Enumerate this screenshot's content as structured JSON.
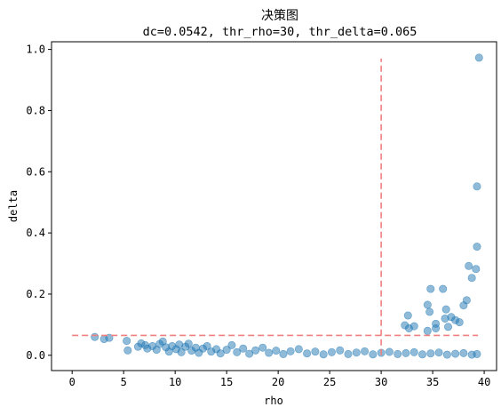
{
  "chart_data": {
    "type": "scatter",
    "title": "决策图",
    "subtitle": "dc=0.0542, thr_rho=30, thr_delta=0.065",
    "xlabel": "rho",
    "ylabel": "delta",
    "xlim": [
      -2,
      41.2
    ],
    "ylim": [
      -0.05,
      1.025
    ],
    "xticks": [
      0,
      5,
      10,
      15,
      20,
      25,
      30,
      35,
      40
    ],
    "yticks": [
      0.0,
      0.2,
      0.4,
      0.6,
      0.8,
      1.0
    ],
    "xtick_labels": [
      "0",
      "5",
      "10",
      "15",
      "20",
      "25",
      "30",
      "35",
      "40"
    ],
    "ytick_labels": [
      "0.0",
      "0.2",
      "0.4",
      "0.6",
      "0.8",
      "1.0"
    ],
    "grid": false,
    "point_color": "#1f77b4",
    "point_alpha": 0.5,
    "threshold_color": "#f08080",
    "thresholds": {
      "rho": {
        "x": 30,
        "y_range": [
          0,
          0.97
        ]
      },
      "delta": {
        "y": 0.065,
        "x_range": [
          0,
          39.4
        ]
      }
    },
    "points": [
      {
        "x": 2.2,
        "y": 0.06
      },
      {
        "x": 3.1,
        "y": 0.053
      },
      {
        "x": 3.6,
        "y": 0.057
      },
      {
        "x": 5.3,
        "y": 0.047
      },
      {
        "x": 5.4,
        "y": 0.016
      },
      {
        "x": 6.4,
        "y": 0.028
      },
      {
        "x": 6.7,
        "y": 0.039
      },
      {
        "x": 7.1,
        "y": 0.033
      },
      {
        "x": 7.3,
        "y": 0.022
      },
      {
        "x": 7.8,
        "y": 0.03
      },
      {
        "x": 8.2,
        "y": 0.018
      },
      {
        "x": 8.5,
        "y": 0.037
      },
      {
        "x": 8.8,
        "y": 0.045
      },
      {
        "x": 9.1,
        "y": 0.026
      },
      {
        "x": 9.4,
        "y": 0.012
      },
      {
        "x": 9.7,
        "y": 0.03
      },
      {
        "x": 10.1,
        "y": 0.02
      },
      {
        "x": 10.4,
        "y": 0.035
      },
      {
        "x": 10.6,
        "y": 0.01
      },
      {
        "x": 11.0,
        "y": 0.028
      },
      {
        "x": 11.3,
        "y": 0.038
      },
      {
        "x": 11.6,
        "y": 0.015
      },
      {
        "x": 12.0,
        "y": 0.025
      },
      {
        "x": 12.3,
        "y": 0.008
      },
      {
        "x": 12.7,
        "y": 0.022
      },
      {
        "x": 13.1,
        "y": 0.03
      },
      {
        "x": 13.5,
        "y": 0.012
      },
      {
        "x": 14.0,
        "y": 0.02
      },
      {
        "x": 14.4,
        "y": 0.006
      },
      {
        "x": 15.0,
        "y": 0.018
      },
      {
        "x": 15.5,
        "y": 0.033
      },
      {
        "x": 16.0,
        "y": 0.01
      },
      {
        "x": 16.6,
        "y": 0.022
      },
      {
        "x": 17.2,
        "y": 0.005
      },
      {
        "x": 17.8,
        "y": 0.016
      },
      {
        "x": 18.5,
        "y": 0.025
      },
      {
        "x": 19.1,
        "y": 0.008
      },
      {
        "x": 19.8,
        "y": 0.015
      },
      {
        "x": 20.5,
        "y": 0.004
      },
      {
        "x": 21.2,
        "y": 0.013
      },
      {
        "x": 22.0,
        "y": 0.02
      },
      {
        "x": 22.8,
        "y": 0.006
      },
      {
        "x": 23.6,
        "y": 0.012
      },
      {
        "x": 24.4,
        "y": 0.003
      },
      {
        "x": 25.2,
        "y": 0.01
      },
      {
        "x": 26.0,
        "y": 0.016
      },
      {
        "x": 26.8,
        "y": 0.004
      },
      {
        "x": 27.6,
        "y": 0.009
      },
      {
        "x": 28.4,
        "y": 0.013
      },
      {
        "x": 29.2,
        "y": 0.003
      },
      {
        "x": 30.0,
        "y": 0.008
      },
      {
        "x": 30.8,
        "y": 0.011
      },
      {
        "x": 31.6,
        "y": 0.004
      },
      {
        "x": 32.4,
        "y": 0.007
      },
      {
        "x": 33.2,
        "y": 0.01
      },
      {
        "x": 34.0,
        "y": 0.003
      },
      {
        "x": 34.8,
        "y": 0.006
      },
      {
        "x": 35.6,
        "y": 0.009
      },
      {
        "x": 36.4,
        "y": 0.002
      },
      {
        "x": 37.2,
        "y": 0.005
      },
      {
        "x": 38.0,
        "y": 0.007
      },
      {
        "x": 38.8,
        "y": 0.002
      },
      {
        "x": 39.3,
        "y": 0.004
      },
      {
        "x": 32.3,
        "y": 0.098
      },
      {
        "x": 32.6,
        "y": 0.13
      },
      {
        "x": 32.7,
        "y": 0.088
      },
      {
        "x": 33.2,
        "y": 0.095
      },
      {
        "x": 34.5,
        "y": 0.165
      },
      {
        "x": 34.5,
        "y": 0.08
      },
      {
        "x": 34.7,
        "y": 0.142
      },
      {
        "x": 34.8,
        "y": 0.217
      },
      {
        "x": 35.3,
        "y": 0.088
      },
      {
        "x": 35.3,
        "y": 0.103
      },
      {
        "x": 36.0,
        "y": 0.217
      },
      {
        "x": 36.2,
        "y": 0.12
      },
      {
        "x": 36.3,
        "y": 0.15
      },
      {
        "x": 36.5,
        "y": 0.093
      },
      {
        "x": 36.8,
        "y": 0.125
      },
      {
        "x": 37.2,
        "y": 0.115
      },
      {
        "x": 37.6,
        "y": 0.108
      },
      {
        "x": 38.0,
        "y": 0.163
      },
      {
        "x": 38.3,
        "y": 0.18
      },
      {
        "x": 38.5,
        "y": 0.292
      },
      {
        "x": 38.8,
        "y": 0.253
      },
      {
        "x": 39.2,
        "y": 0.282
      },
      {
        "x": 39.3,
        "y": 0.552
      },
      {
        "x": 39.3,
        "y": 0.355
      },
      {
        "x": 39.5,
        "y": 0.973
      }
    ]
  }
}
